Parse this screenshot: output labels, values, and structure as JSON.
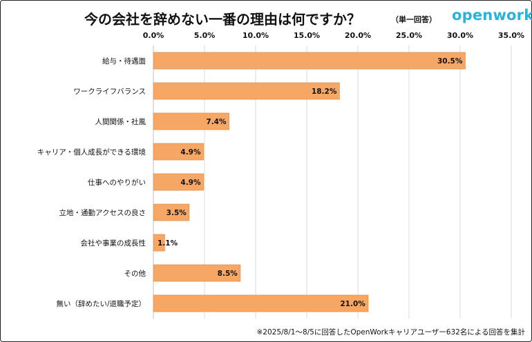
{
  "header": {
    "title": "今の会社を辞めない一番の理由は何ですか？",
    "subtitle": "（単一回答）",
    "logo_text": "openwork"
  },
  "footnote": "※2025/8/1～8/5に回答したOpenWorkキャリアユーザー632名による回答を集計",
  "colors": {
    "bar": "#f6a765",
    "bar_stroke": "#e88f4a",
    "grid": "#d9d9d9",
    "logo": "#2ab3d8"
  },
  "chart_data": {
    "type": "bar",
    "orientation": "horizontal",
    "categories": [
      "給与・待遇面",
      "ワークライフバランス",
      "人間関係・社風",
      "キャリア・個人成長ができる環境",
      "仕事へのやりがい",
      "立地・通勤アクセスの良さ",
      "会社や事業の成長性",
      "その他",
      "無い（辞めたい/退職予定）"
    ],
    "values": [
      30.5,
      18.2,
      7.4,
      4.9,
      4.9,
      3.5,
      1.1,
      8.5,
      21.0
    ],
    "data_labels": [
      "30.5%",
      "18.2%",
      "7.4%",
      "4.9%",
      "4.9%",
      "3.5%",
      "1.1%",
      "8.5%",
      "21.0%"
    ],
    "xlim": [
      0,
      35
    ],
    "xticks": [
      0,
      5,
      10,
      15,
      20,
      25,
      30,
      35
    ],
    "xtick_labels": [
      "0.0%",
      "5.0%",
      "10.0%",
      "15.0%",
      "20.0%",
      "25.0%",
      "30.0%",
      "35.0%"
    ],
    "x_axis_position": "top",
    "grid": true
  }
}
